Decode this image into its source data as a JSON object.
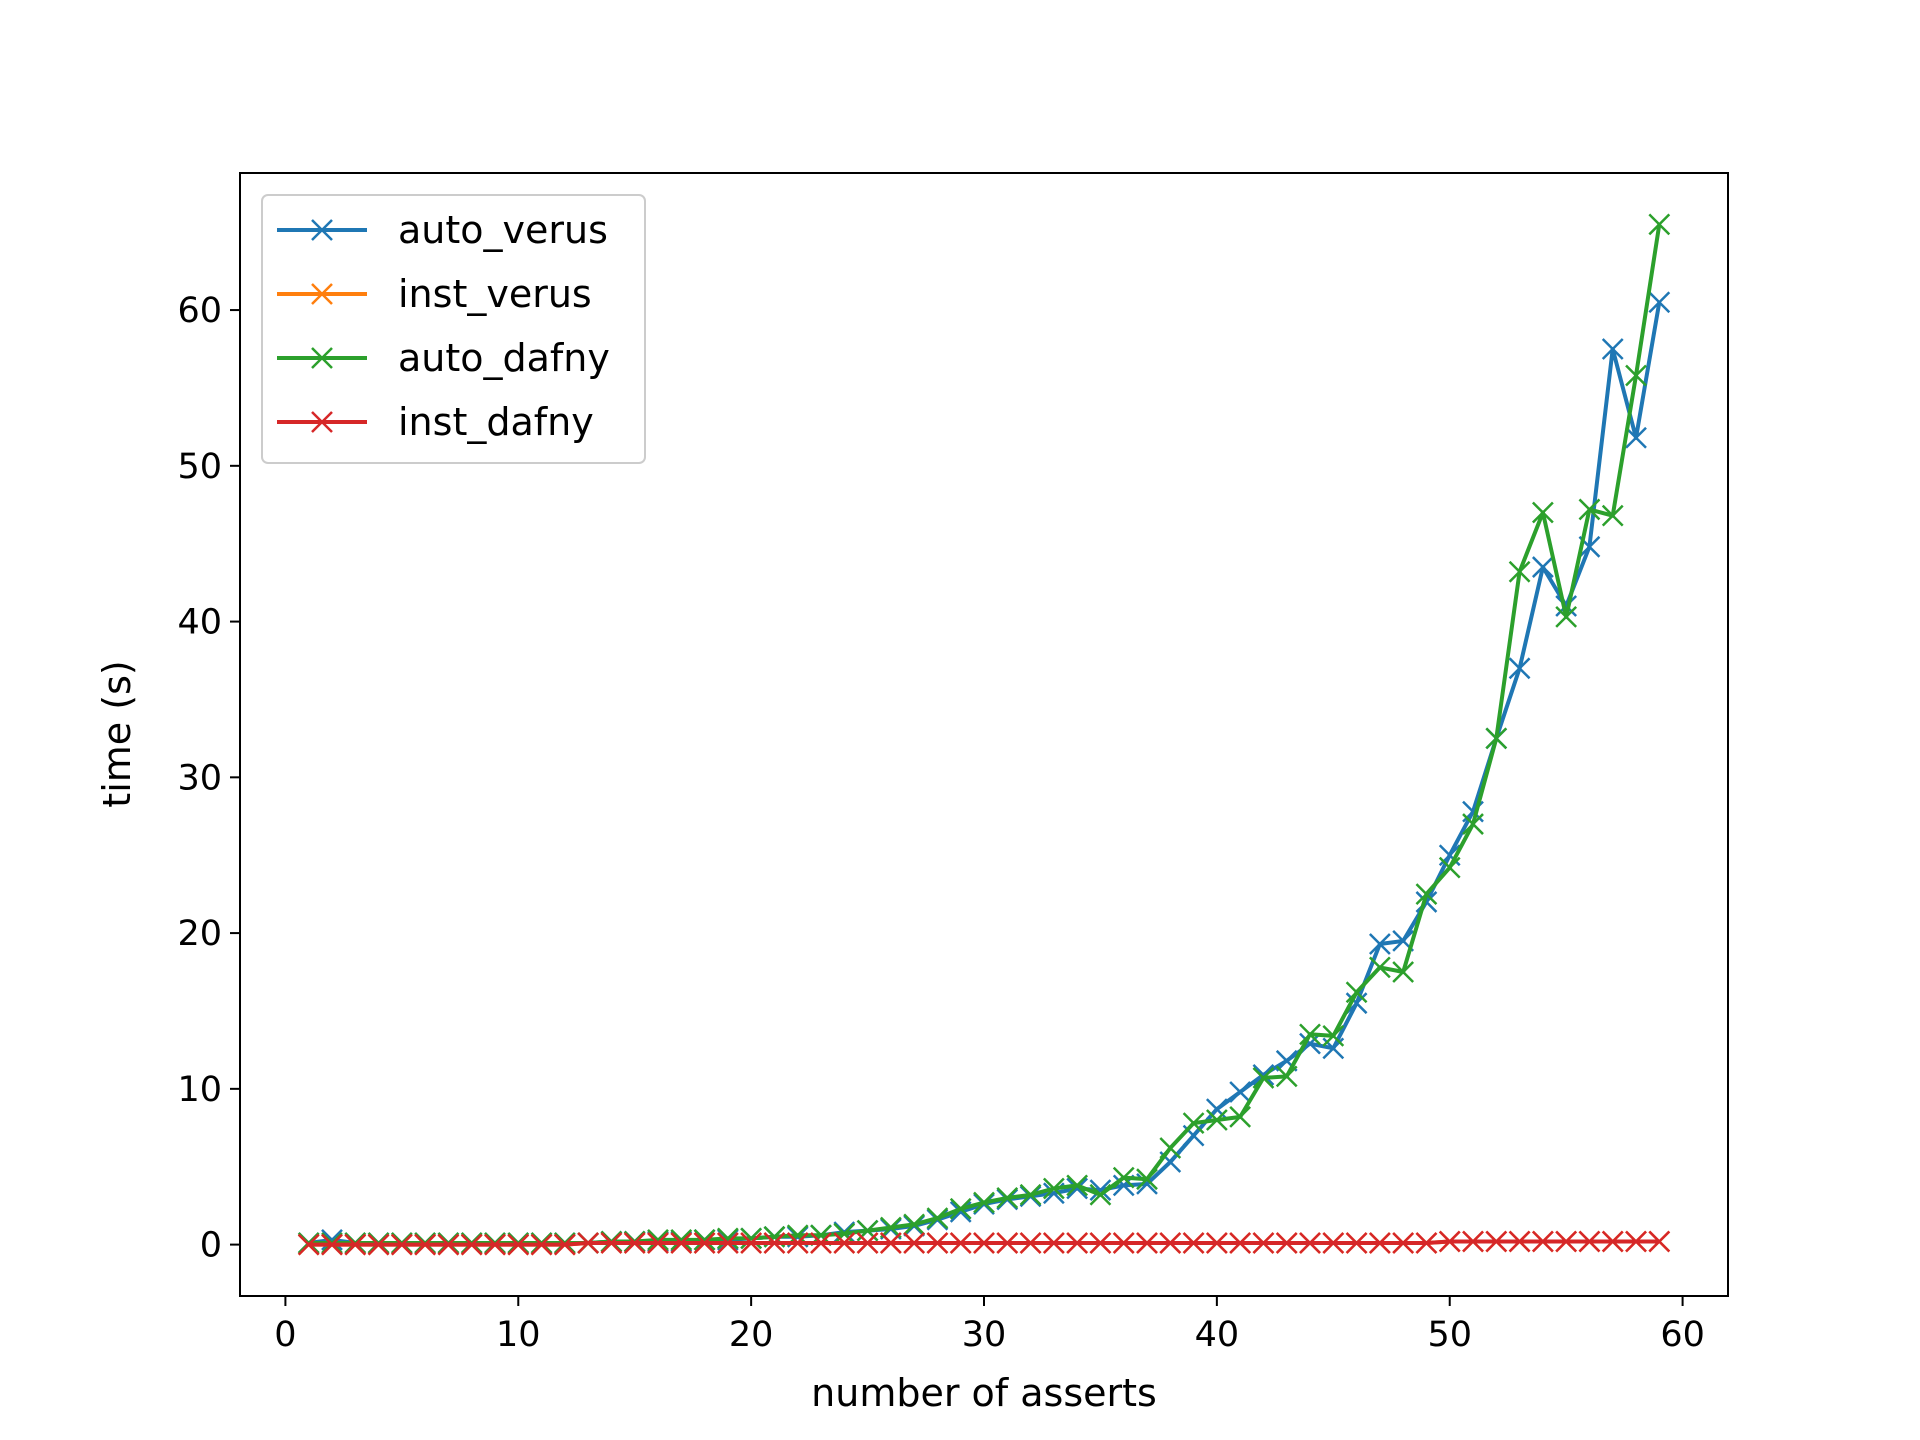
{
  "chart_data": {
    "type": "line",
    "xlabel": "number of asserts",
    "ylabel": "time (s)",
    "xlim": [
      -1.95,
      61.95
    ],
    "ylim": [
      -3.3,
      68.8
    ],
    "xticks": [
      0,
      10,
      20,
      30,
      40,
      50,
      60
    ],
    "yticks": [
      0,
      10,
      20,
      30,
      40,
      50,
      60
    ],
    "grid": false,
    "legend_position": "upper-left",
    "marker": "x",
    "x": [
      1,
      2,
      3,
      4,
      5,
      6,
      7,
      8,
      9,
      10,
      11,
      12,
      13,
      14,
      15,
      16,
      17,
      18,
      19,
      20,
      21,
      22,
      23,
      24,
      25,
      26,
      27,
      28,
      29,
      30,
      31,
      32,
      33,
      34,
      35,
      36,
      37,
      38,
      39,
      40,
      41,
      42,
      43,
      44,
      45,
      46,
      47,
      48,
      49,
      50,
      51,
      52,
      53,
      54,
      55,
      56,
      57,
      58,
      59
    ],
    "series": [
      {
        "name": "auto_verus",
        "color": "#1f77b4",
        "values": [
          0.1,
          0.3,
          0.1,
          0.1,
          0.1,
          0.1,
          0.1,
          0.1,
          0.1,
          0.1,
          0.1,
          0.1,
          0.1,
          0.2,
          0.2,
          0.2,
          0.2,
          0.3,
          0.3,
          0.4,
          0.5,
          0.5,
          0.6,
          0.8,
          0.9,
          1.0,
          1.2,
          1.6,
          2.1,
          2.6,
          2.9,
          3.1,
          3.3,
          3.6,
          3.5,
          3.8,
          3.9,
          5.3,
          7.0,
          8.7,
          9.8,
          10.9,
          11.8,
          12.9,
          12.6,
          15.5,
          19.3,
          19.5,
          22.0,
          25.0,
          27.8,
          32.5,
          37.0,
          43.5,
          41.0,
          44.8,
          57.5,
          51.8,
          60.5
        ]
      },
      {
        "name": "inst_verus",
        "color": "#ff7f0e",
        "values": [
          0.0,
          0.0,
          0.0,
          0.0,
          0.0,
          0.0,
          0.0,
          0.0,
          0.0,
          0.0,
          0.0,
          0.0,
          0.1,
          0.1,
          0.1,
          0.1,
          0.1,
          0.1,
          0.1,
          0.1,
          0.1,
          0.1,
          0.1,
          0.1,
          0.1,
          0.1,
          0.1,
          0.1,
          0.1,
          0.1,
          0.1,
          0.1,
          0.1,
          0.1,
          0.1,
          0.1,
          0.1,
          0.1,
          0.1,
          0.1,
          0.1,
          0.1,
          0.1,
          0.1,
          0.1,
          0.1,
          0.1,
          0.1,
          0.1,
          0.2,
          0.2,
          0.2,
          0.2,
          0.2,
          0.2,
          0.2,
          0.2,
          0.2,
          0.2
        ]
      },
      {
        "name": "auto_dafny",
        "color": "#2ca02c",
        "values": [
          0.1,
          0.1,
          0.1,
          0.1,
          0.1,
          0.1,
          0.1,
          0.1,
          0.1,
          0.1,
          0.1,
          0.1,
          0.1,
          0.2,
          0.2,
          0.3,
          0.3,
          0.3,
          0.4,
          0.4,
          0.5,
          0.6,
          0.6,
          0.7,
          0.9,
          1.1,
          1.3,
          1.7,
          2.3,
          2.7,
          3.0,
          3.2,
          3.6,
          3.8,
          3.2,
          4.3,
          4.2,
          6.2,
          7.8,
          8.0,
          8.2,
          10.7,
          10.8,
          13.5,
          13.4,
          16.2,
          17.8,
          17.5,
          22.5,
          24.2,
          27.0,
          32.5,
          43.2,
          47.0,
          40.3,
          47.2,
          46.8,
          55.8,
          65.5
        ]
      },
      {
        "name": "inst_dafny",
        "color": "#d62728",
        "values": [
          0.0,
          0.0,
          0.0,
          0.0,
          0.0,
          0.0,
          0.0,
          0.0,
          0.0,
          0.0,
          0.0,
          0.0,
          0.1,
          0.1,
          0.1,
          0.1,
          0.1,
          0.1,
          0.1,
          0.1,
          0.1,
          0.1,
          0.1,
          0.1,
          0.1,
          0.1,
          0.1,
          0.1,
          0.1,
          0.1,
          0.1,
          0.1,
          0.1,
          0.1,
          0.1,
          0.1,
          0.1,
          0.1,
          0.1,
          0.1,
          0.1,
          0.1,
          0.1,
          0.1,
          0.1,
          0.1,
          0.1,
          0.1,
          0.1,
          0.2,
          0.2,
          0.2,
          0.2,
          0.2,
          0.2,
          0.2,
          0.2,
          0.2,
          0.2
        ]
      }
    ]
  }
}
